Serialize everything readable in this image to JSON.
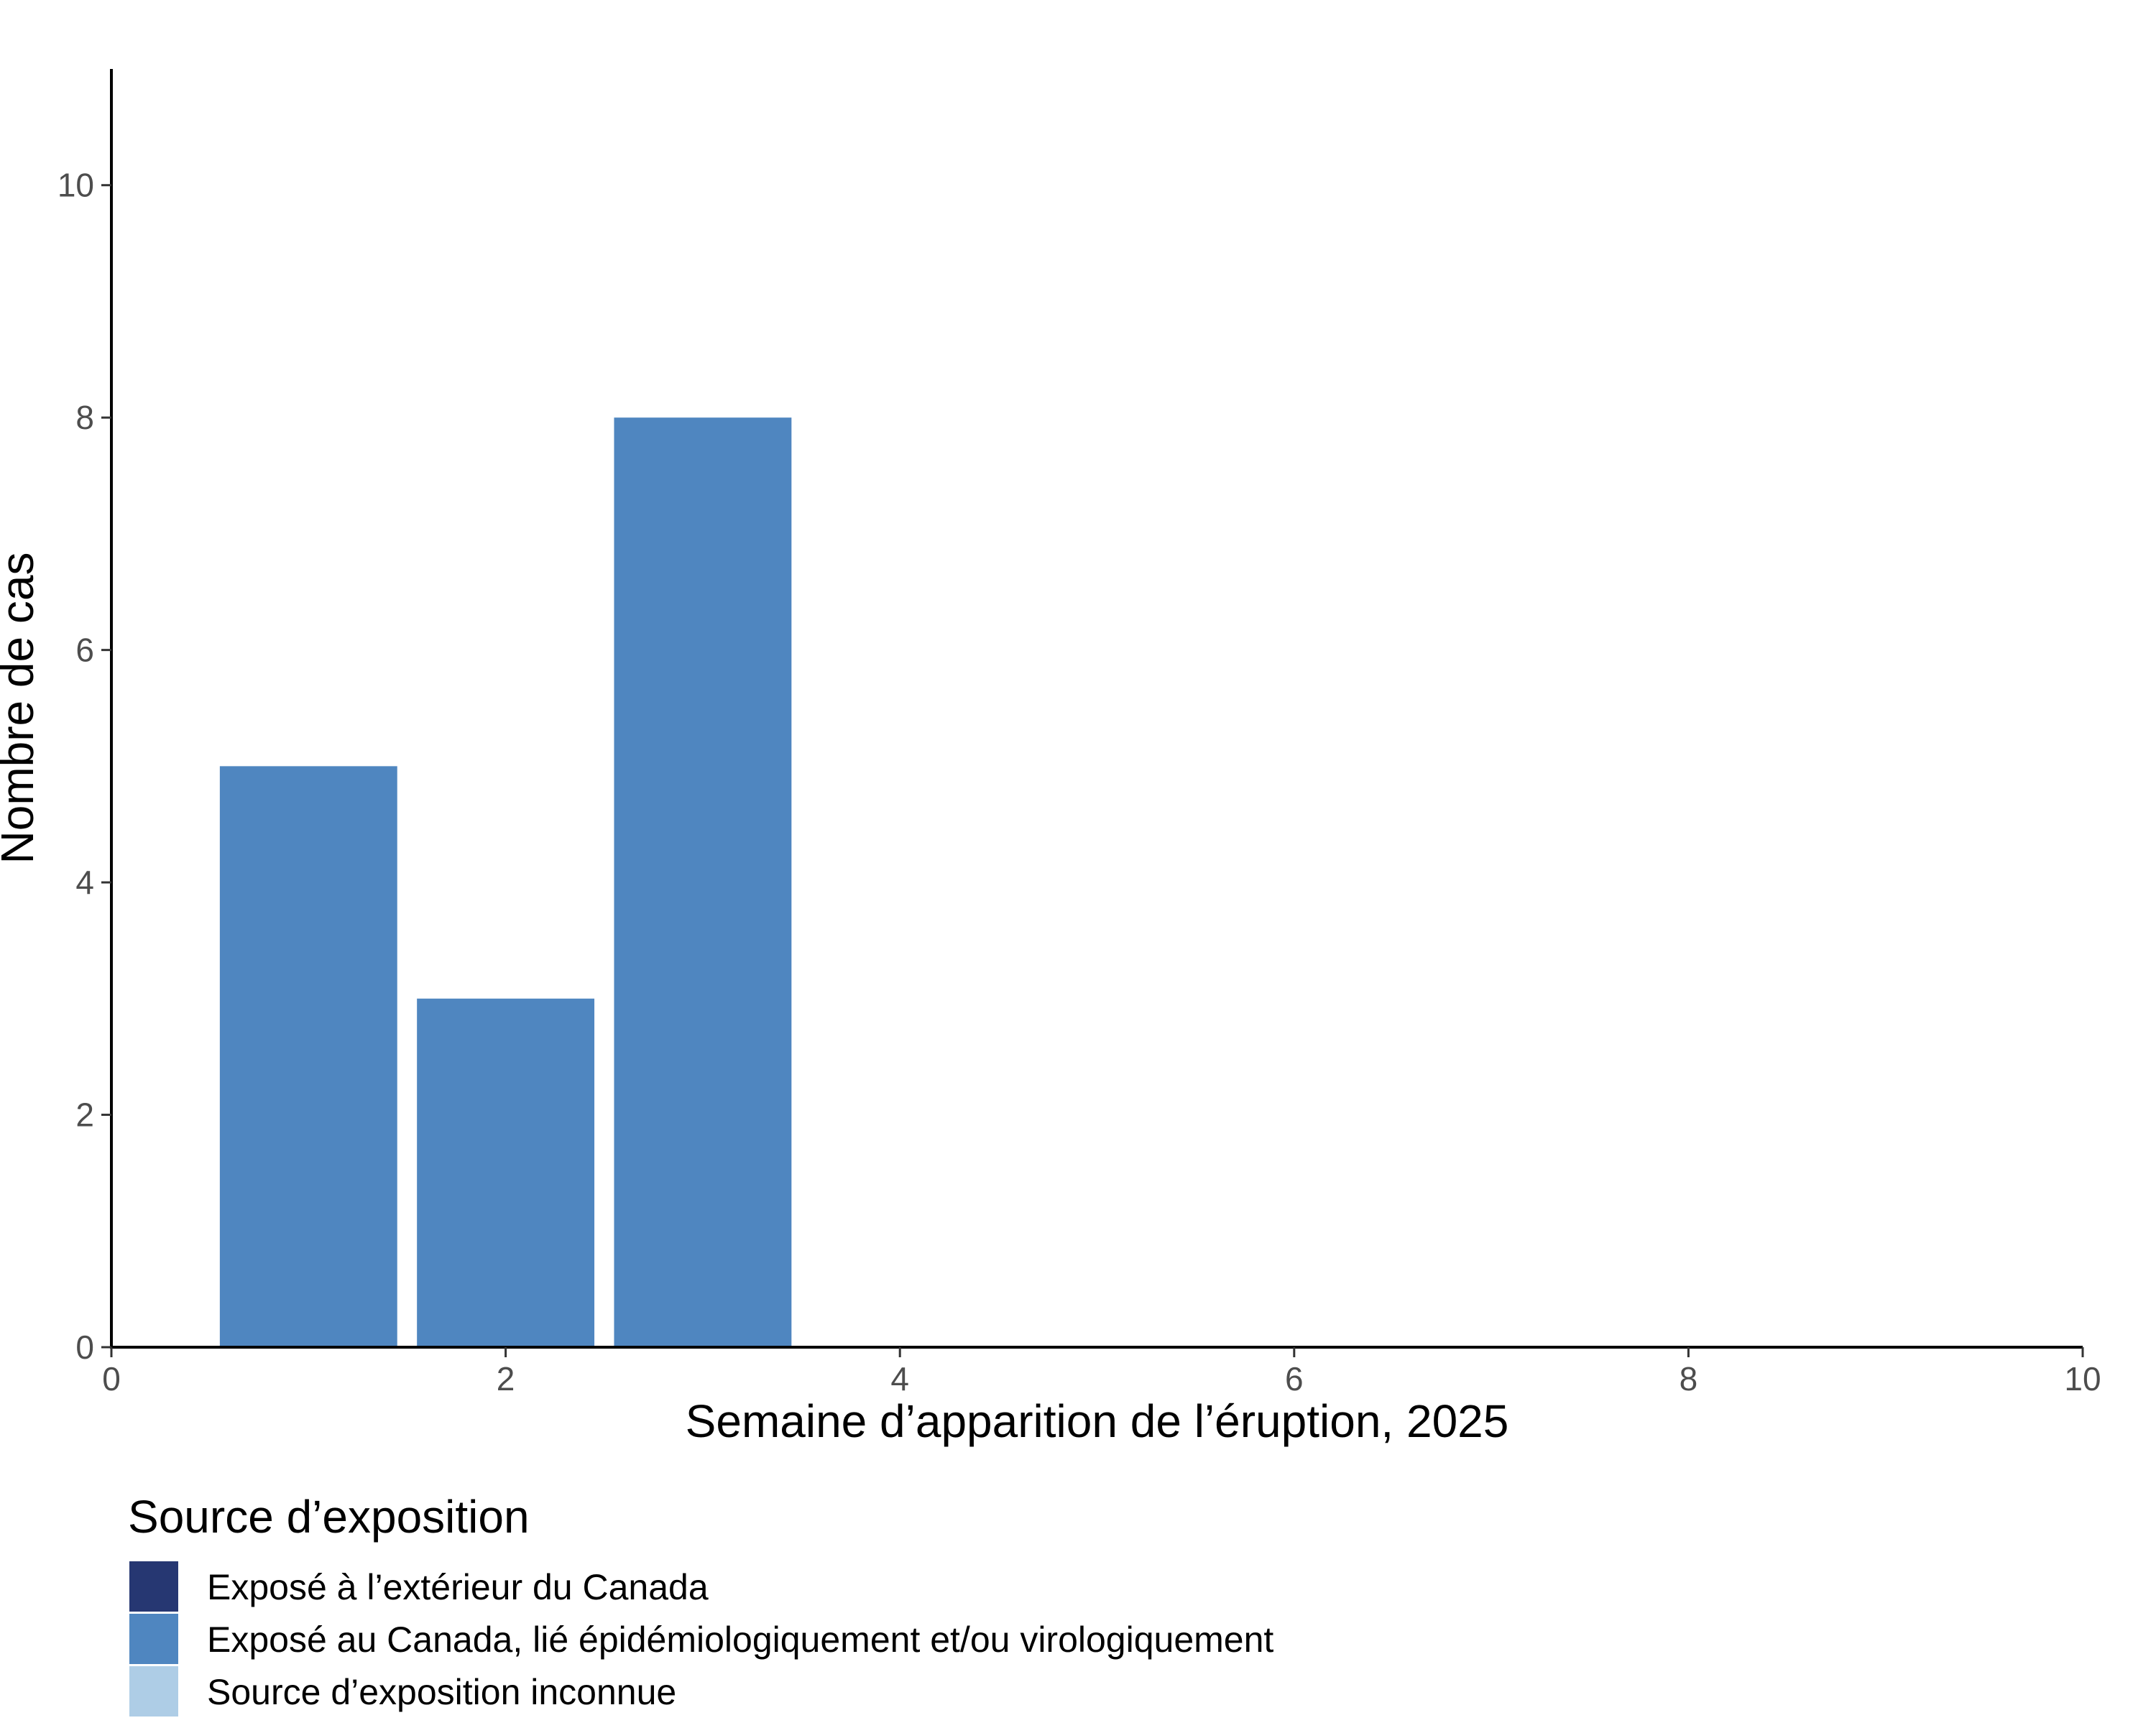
{
  "chart_data": {
    "type": "bar",
    "xlabel": "Semaine d’apparition de l’éruption, 2025",
    "ylabel": "Nombre de cas",
    "x": [
      1,
      2,
      3
    ],
    "series": [
      {
        "name": "Exposé au Canada, lié épidémiologiquement et/ou virologiquement",
        "color": "#4f86c0",
        "values": [
          5,
          3,
          8
        ]
      }
    ],
    "xlim": [
      0,
      10
    ],
    "ylim": [
      0,
      11
    ],
    "bar_width": 0.9,
    "x_ticks": [
      0,
      2,
      4,
      6,
      8,
      10
    ],
    "y_ticks": [
      0,
      2,
      4,
      6,
      8,
      10
    ],
    "grid": false,
    "legend": {
      "title": "Source d’exposition",
      "position": "bottom-left",
      "entries": [
        {
          "label": "Exposé à l’extérieur du Canada",
          "color": "#263772"
        },
        {
          "label": "Exposé au Canada, lié épidémiologiquement et/ou virologiquement",
          "color": "#4f86c0"
        },
        {
          "label": "Source d’exposition inconnue",
          "color": "#aecde6"
        }
      ]
    }
  }
}
